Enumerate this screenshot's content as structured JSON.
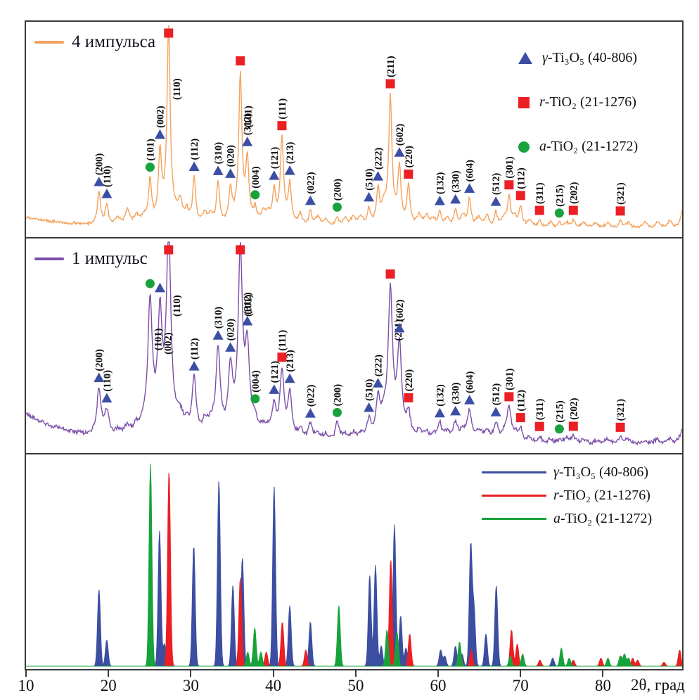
{
  "figure": {
    "axis": {
      "label": "2θ, град",
      "ticks": [
        10,
        20,
        30,
        40,
        50,
        60,
        70,
        80
      ],
      "range": [
        10,
        89.6
      ]
    },
    "colors": {
      "four_pulses": "#F4A25D",
      "one_pulse": "#7C50A8",
      "gamma": "#3B4EA2",
      "rutile": "#EB1F24",
      "anatase": "#18A23B",
      "frame": "#3b3b3b",
      "annotation_text": "#101010"
    },
    "panels": {
      "top": {
        "legend_label": "4 импульса"
      },
      "middle": {
        "legend_label": "1 импульс"
      },
      "bottom": {}
    },
    "phase_legend": [
      {
        "marker": "triangle",
        "phase": "gamma",
        "prefix": "γ",
        "rest": "-Ti₃O₅ (40-806)"
      },
      {
        "marker": "square",
        "phase": "rutile",
        "prefix": "r",
        "rest": "-TiO₂ (21-1276)"
      },
      {
        "marker": "circle",
        "phase": "anatase",
        "prefix": "a",
        "rest": "-TiO₂ (21-1272)"
      }
    ]
  },
  "chart_data": {
    "type": "line",
    "title": "",
    "xlabel": "2θ, град",
    "ylabel": "",
    "x_range": [
      10,
      89.6
    ],
    "grid": false,
    "series_experimental": [
      {
        "key": "i_4pulse",
        "name": "4 импульса",
        "color": "#F4A25D"
      },
      {
        "key": "i_1pulse",
        "name": "1 импульс",
        "color": "#7C50A8"
      }
    ],
    "labeled_peaks": [
      {
        "hkl": "(200)",
        "phase": "gamma",
        "two_theta": 18.85,
        "i_4pulse": 18,
        "i_1pulse": 25
      },
      {
        "hkl": "(110)",
        "phase": "gamma",
        "two_theta": 19.8,
        "i_4pulse": 11,
        "i_1pulse": 13
      },
      {
        "hkl": "(101)",
        "phase": "anatase",
        "two_theta": 25.05,
        "i_4pulse": 23,
        "i_1pulse": 64
      },
      {
        "hkl": "(002)",
        "phase": "gamma",
        "two_theta": 26.25,
        "i_4pulse": 36,
        "i_1pulse": 54
      },
      {
        "hkl": "(110)",
        "phase": "rutile",
        "two_theta": 27.3,
        "i_4pulse": 100,
        "i_1pulse": 100
      },
      {
        "hkl": "(112)",
        "phase": "gamma",
        "two_theta": 30.4,
        "i_4pulse": 25,
        "i_1pulse": 30
      },
      {
        "hkl": "(310)",
        "phase": "gamma",
        "two_theta": 33.3,
        "i_4pulse": 23,
        "i_1pulse": 43
      },
      {
        "hkl": "(020)",
        "phase": "gamma",
        "two_theta": 34.8,
        "i_4pulse": 18,
        "i_1pulse": 33
      },
      {
        "hkl": "(101)",
        "phase": "rutile",
        "two_theta": 36.0,
        "i_4pulse": 76,
        "i_1pulse": 90
      },
      {
        "hkl": "(312)",
        "phase": "gamma",
        "two_theta": 36.85,
        "i_4pulse": 32,
        "i_1pulse": 40
      },
      {
        "hkl": "(004)",
        "phase": "anatase",
        "two_theta": 37.8,
        "i_4pulse": 7,
        "i_1pulse": 7
      },
      {
        "hkl": "(121)",
        "phase": "gamma",
        "two_theta": 40.1,
        "i_4pulse": 17,
        "i_1pulse": 17
      },
      {
        "hkl": "(111)",
        "phase": "rutile",
        "two_theta": 41.05,
        "i_4pulse": 44,
        "i_1pulse": 36
      },
      {
        "hkl": "(213)",
        "phase": "gamma",
        "two_theta": 42.0,
        "i_4pulse": 21,
        "i_1pulse": 25
      },
      {
        "hkl": "(022)",
        "phase": "gamma",
        "two_theta": 44.5,
        "i_4pulse": 8,
        "i_1pulse": 9
      },
      {
        "hkl": "(200)",
        "phase": "anatase",
        "two_theta": 47.75,
        "i_4pulse": 5,
        "i_1pulse": 10
      },
      {
        "hkl": "(510)",
        "phase": "gamma",
        "two_theta": 51.6,
        "i_4pulse": 9,
        "i_1pulse": 10
      },
      {
        "hkl": "(222)",
        "phase": "gamma",
        "two_theta": 52.7,
        "i_4pulse": 18,
        "i_1pulse": 19
      },
      {
        "hkl": "(211)",
        "phase": "rutile",
        "two_theta": 54.2,
        "i_4pulse": 65,
        "i_1pulse": 72
      },
      {
        "hkl": "(602)",
        "phase": "gamma",
        "two_theta": 55.3,
        "i_4pulse": 30,
        "i_1pulse": 44
      },
      {
        "hkl": "(220)",
        "phase": "rutile",
        "two_theta": 56.4,
        "i_4pulse": 21,
        "i_1pulse": 12
      },
      {
        "hkl": "(132)",
        "phase": "gamma",
        "two_theta": 60.2,
        "i_4pulse": 8,
        "i_1pulse": 9
      },
      {
        "hkl": "(330)",
        "phase": "gamma",
        "two_theta": 62.1,
        "i_4pulse": 9,
        "i_1pulse": 10
      },
      {
        "hkl": "(604)",
        "phase": "gamma",
        "two_theta": 63.8,
        "i_4pulse": 15,
        "i_1pulse": 16
      },
      {
        "hkl": "(512)",
        "phase": "gamma",
        "two_theta": 67.0,
        "i_4pulse": 8,
        "i_1pulse": 10
      },
      {
        "hkl": "(301)",
        "phase": "rutile",
        "two_theta": 68.6,
        "i_4pulse": 16,
        "i_1pulse": 17
      },
      {
        "hkl": "(112)",
        "phase": "rutile",
        "two_theta": 70.0,
        "i_4pulse": 11,
        "i_1pulse": 7
      },
      {
        "hkl": "(311)",
        "phase": "rutile",
        "two_theta": 72.3,
        "i_4pulse": 4,
        "i_1pulse": 4
      },
      {
        "hkl": "(215)",
        "phase": "anatase",
        "two_theta": 74.7,
        "i_4pulse": 2.5,
        "i_1pulse": 2.5
      },
      {
        "hkl": "(202)",
        "phase": "rutile",
        "two_theta": 76.4,
        "i_4pulse": 4,
        "i_1pulse": 4
      },
      {
        "hkl": "(321)",
        "phase": "rutile",
        "two_theta": 82.1,
        "i_4pulse": 4,
        "i_1pulse": 4
      }
    ],
    "minor_unlabeled_peaks": [
      [
        21.1,
        4,
        3
      ],
      [
        22.3,
        8,
        5
      ],
      [
        23.4,
        5,
        4
      ],
      [
        24.3,
        4,
        3
      ],
      [
        28.7,
        10,
        8
      ],
      [
        29.5,
        6,
        5
      ],
      [
        31.7,
        6,
        7
      ],
      [
        32.4,
        5,
        5
      ],
      [
        38.8,
        6,
        5
      ],
      [
        39.4,
        5,
        4
      ],
      [
        43.3,
        6,
        6
      ],
      [
        45.4,
        5,
        4
      ],
      [
        46.4,
        4,
        4
      ],
      [
        48.7,
        4,
        4
      ],
      [
        49.7,
        5,
        4
      ],
      [
        50.6,
        5,
        4
      ],
      [
        53.4,
        8,
        8
      ],
      [
        57.7,
        6,
        5
      ],
      [
        58.6,
        5,
        4
      ],
      [
        59.4,
        4,
        3
      ],
      [
        61.1,
        5,
        5
      ],
      [
        63.0,
        6,
        6
      ],
      [
        64.9,
        5,
        6
      ],
      [
        65.9,
        6,
        6
      ],
      [
        68.0,
        5,
        5
      ],
      [
        69.3,
        5,
        4
      ],
      [
        71.1,
        4,
        3
      ],
      [
        73.6,
        3,
        3
      ],
      [
        75.6,
        3,
        3
      ],
      [
        77.6,
        3,
        3
      ],
      [
        79.1,
        3,
        2
      ],
      [
        80.6,
        3,
        3
      ],
      [
        83.1,
        3,
        3
      ],
      [
        85.1,
        3,
        2
      ],
      [
        86.6,
        3,
        3
      ],
      [
        88.1,
        4,
        3
      ],
      [
        89.7,
        10,
        9
      ]
    ],
    "reference_patterns": {
      "gamma_Ti3O5": {
        "name": "γ-Ti₃O₅ (40-806)",
        "color": "#3B4EA2",
        "peaks": [
          [
            18.85,
            38
          ],
          [
            19.8,
            13
          ],
          [
            26.2,
            67
          ],
          [
            26.8,
            11
          ],
          [
            30.35,
            60
          ],
          [
            33.4,
            92
          ],
          [
            35.1,
            40
          ],
          [
            36.25,
            54
          ],
          [
            40.1,
            89
          ],
          [
            42.0,
            30
          ],
          [
            44.5,
            22
          ],
          [
            51.7,
            45
          ],
          [
            52.4,
            50
          ],
          [
            53.1,
            10
          ],
          [
            54.7,
            70
          ],
          [
            55.45,
            25
          ],
          [
            56.1,
            9
          ],
          [
            60.3,
            8
          ],
          [
            60.8,
            5
          ],
          [
            62.1,
            10
          ],
          [
            62.9,
            6
          ],
          [
            63.95,
            60
          ],
          [
            64.35,
            28
          ],
          [
            65.8,
            16
          ],
          [
            67.05,
            40
          ],
          [
            73.9,
            4
          ]
        ]
      },
      "r_TiO2": {
        "name": "r-TiO₂ (21-1276)",
        "color": "#EB1F24",
        "peaks": [
          [
            27.35,
            97
          ],
          [
            36.0,
            44
          ],
          [
            39.15,
            7
          ],
          [
            41.1,
            22
          ],
          [
            43.95,
            8
          ],
          [
            54.25,
            53
          ],
          [
            56.55,
            16
          ],
          [
            62.7,
            7
          ],
          [
            64.0,
            8
          ],
          [
            68.9,
            18
          ],
          [
            69.6,
            11
          ],
          [
            72.35,
            3
          ],
          [
            76.4,
            3
          ],
          [
            79.75,
            4
          ],
          [
            82.2,
            5
          ],
          [
            83.6,
            4
          ],
          [
            84.2,
            3
          ],
          [
            87.4,
            2
          ],
          [
            89.3,
            8
          ]
        ]
      },
      "a_TiO2": {
        "name": "a-TiO₂ (21-1272)",
        "color": "#18A23B",
        "peaks": [
          [
            25.1,
            100
          ],
          [
            36.9,
            7
          ],
          [
            37.75,
            19
          ],
          [
            38.5,
            7
          ],
          [
            47.95,
            30
          ],
          [
            53.8,
            18
          ],
          [
            55.0,
            17
          ],
          [
            62.6,
            12
          ],
          [
            68.75,
            5
          ],
          [
            70.25,
            6
          ],
          [
            74.95,
            9
          ],
          [
            75.9,
            4
          ],
          [
            80.6,
            4
          ],
          [
            82.1,
            5
          ],
          [
            82.6,
            6
          ],
          [
            83.1,
            4
          ]
        ]
      }
    }
  }
}
